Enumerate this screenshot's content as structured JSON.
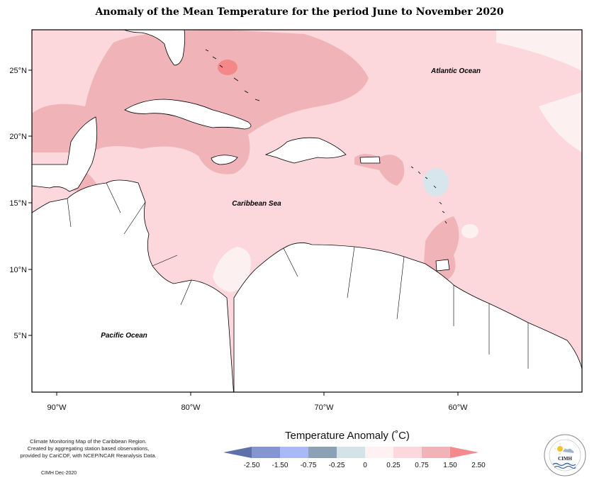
{
  "title": "Anomaly of the Mean Temperature for the period June to November 2020",
  "map": {
    "lon_ticks": [
      "90°W",
      "80°W",
      "70°W",
      "60°W"
    ],
    "lat_ticks": [
      "25°N",
      "20°N",
      "15°N",
      "10°N",
      "5°N"
    ],
    "labels": {
      "atlantic": "Atlantic Ocean",
      "caribbean": "Caribbean Sea",
      "pacific": "Pacific Ocean"
    },
    "colors": {
      "base": "#fcd8dc",
      "warm": "#f0b4b8",
      "hot": "#f48888",
      "near_zero": "#fdf0f0",
      "cool": "#d6e6ec",
      "cooler": "#7f9bb0",
      "land_line": "#000000"
    }
  },
  "legend": {
    "title": "Temperature Anomaly (˚C)",
    "ticks": [
      "-2.50",
      "-1.50",
      "-0.75",
      "-0.25",
      "0",
      "0.25",
      "0.75",
      "1.50",
      "2.50"
    ],
    "colors": [
      "#5f71a9",
      "#8496cf",
      "#a8b9f5",
      "#8aa1b6",
      "#d3e3e8",
      "#fff1f1",
      "#fcd8dc",
      "#f0b4b8",
      "#f48a8d"
    ]
  },
  "credit": {
    "lines": [
      "Climate Monitoring Map of the Caribbean Region.",
      "Created by aggregating station based observations,",
      "provided by CariCOF, with NCEP/NCAR Reanalysis Data."
    ],
    "date": "CIMH Dec-2020"
  },
  "logo": {
    "text": "CIMH"
  }
}
